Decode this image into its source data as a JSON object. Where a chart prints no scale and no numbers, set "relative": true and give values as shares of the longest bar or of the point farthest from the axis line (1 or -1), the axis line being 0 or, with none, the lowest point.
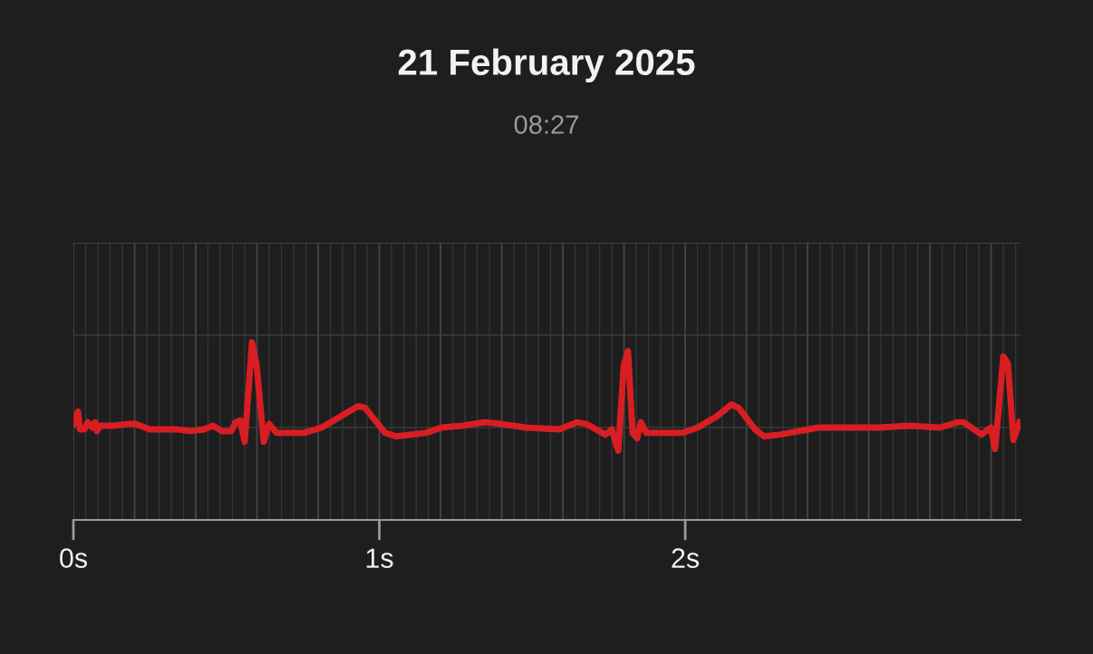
{
  "chart_data": {
    "type": "line",
    "title": "21 February 2025",
    "subtitle": "08:27",
    "relative": true,
    "color": "#d81e22",
    "grid": true,
    "line_style": "solid",
    "xlim": [
      0,
      3.096
    ],
    "xticks": [
      {
        "value": 0,
        "label": "0s"
      },
      {
        "value": 1,
        "label": "1s"
      },
      {
        "value": 2,
        "label": "2s"
      }
    ],
    "tick_labels": "x",
    "ref_lines": [
      {
        "axis": "y",
        "value": 0.52,
        "color": "#3a3a3a"
      }
    ],
    "x": [
      0,
      0.015,
      0.021,
      0.036,
      0.047,
      0.056,
      0.062,
      0.071,
      0.077,
      0.086,
      0.13,
      0.175,
      0.204,
      0.249,
      0.293,
      0.338,
      0.382,
      0.427,
      0.456,
      0.486,
      0.516,
      0.53,
      0.545,
      0.56,
      0.584,
      0.599,
      0.622,
      0.64,
      0.664,
      0.753,
      0.812,
      0.871,
      0.93,
      0.954,
      1.019,
      1.055,
      1.153,
      1.203,
      1.271,
      1.345,
      1.399,
      1.479,
      1.588,
      1.647,
      1.677,
      1.739,
      1.76,
      1.781,
      1.799,
      1.813,
      1.828,
      1.843,
      1.855,
      1.873,
      1.944,
      1.991,
      2.041,
      2.071,
      2.101,
      2.151,
      2.175,
      2.228,
      2.258,
      2.308,
      2.436,
      2.634,
      2.732,
      2.833,
      2.892,
      2.91,
      2.969,
      2.999,
      3.013,
      3.04,
      3.055,
      3.073,
      3.093
    ],
    "values": [
      0.54,
      0.61,
      0.51,
      0.51,
      0.55,
      0.53,
      0.52,
      0.55,
      0.5,
      0.53,
      0.53,
      0.54,
      0.54,
      0.51,
      0.51,
      0.51,
      0.5,
      0.51,
      0.53,
      0.5,
      0.5,
      0.55,
      0.56,
      0.44,
      1.0,
      0.87,
      0.44,
      0.54,
      0.49,
      0.49,
      0.52,
      0.58,
      0.64,
      0.63,
      0.49,
      0.47,
      0.49,
      0.52,
      0.53,
      0.55,
      0.54,
      0.52,
      0.51,
      0.55,
      0.54,
      0.48,
      0.51,
      0.39,
      0.87,
      0.95,
      0.49,
      0.46,
      0.55,
      0.49,
      0.49,
      0.49,
      0.52,
      0.55,
      0.58,
      0.65,
      0.63,
      0.51,
      0.47,
      0.48,
      0.52,
      0.52,
      0.53,
      0.52,
      0.55,
      0.55,
      0.48,
      0.52,
      0.4,
      0.92,
      0.88,
      0.45,
      0.55
    ]
  }
}
